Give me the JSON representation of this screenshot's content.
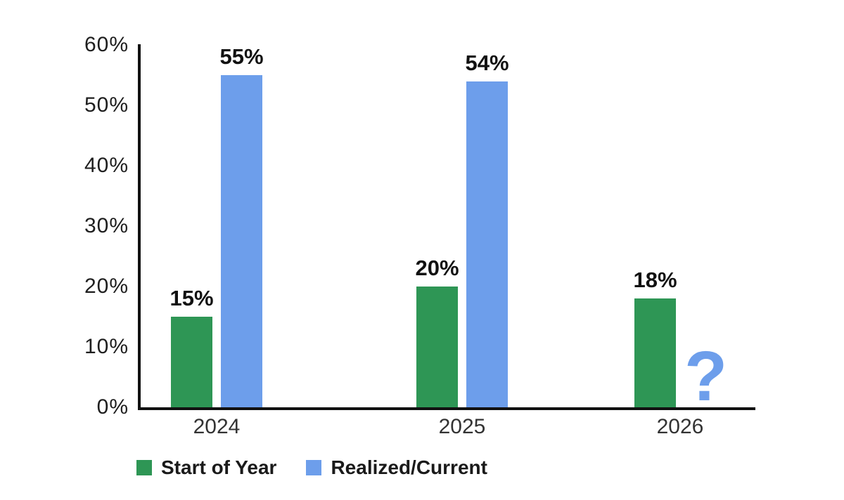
{
  "chart_data": {
    "type": "bar",
    "title": "",
    "xlabel": "",
    "ylabel": "",
    "categories": [
      "2024",
      "2025",
      "2026"
    ],
    "series": [
      {
        "name": "Start of Year",
        "color": "#2e9655",
        "values": [
          15,
          20,
          18
        ],
        "labels": [
          "15%",
          "20%",
          "18%"
        ]
      },
      {
        "name": "Realized/Current",
        "color": "#6d9eeb",
        "values": [
          55,
          54,
          null
        ],
        "labels": [
          "55%",
          "54%",
          "?"
        ]
      }
    ],
    "ylim": [
      0,
      60
    ],
    "yticks": [
      0,
      10,
      20,
      30,
      40,
      50,
      60
    ],
    "ytick_labels": [
      "0%",
      "10%",
      "20%",
      "30%",
      "40%",
      "50%",
      "60%"
    ],
    "grid": false,
    "legend_position": "bottom",
    "missing_value_marker": "?",
    "missing_value_marker_color": "#6d9eeb"
  },
  "colors": {
    "background": "#ffffff",
    "axis": "#111111",
    "green_series": "#2e9655",
    "blue_series": "#6d9eeb",
    "tick_text": "#1e1e1e",
    "category_text": "#333333",
    "value_label_text": "#111111"
  }
}
